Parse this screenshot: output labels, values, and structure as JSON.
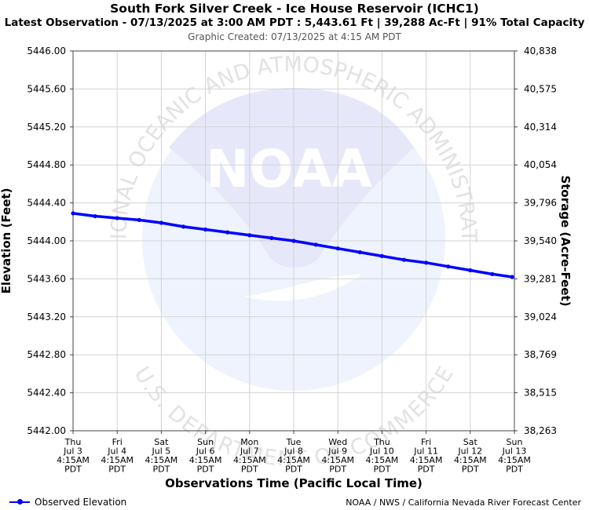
{
  "chart_data": {
    "type": "line",
    "title": "South Fork Silver Creek - Ice House Reservoir (ICHC1)",
    "subtitle": "Latest Observation - 07/13/2025 at 3:00 AM PDT : 5,443.61 Ft | 39,288 Ac-Ft | 91% Total Capacity",
    "created": "Graphic Created: 07/13/2025 at 4:15 AM PDT",
    "xlabel": "Observations Time (Pacific Local Time)",
    "ylabel": "Elevation (Feet)",
    "y2label": "Storage (Acre-Feet)",
    "ylim": [
      5442.0,
      5446.0
    ],
    "xlim": [
      0,
      10
    ],
    "left_ticks": [
      "5442.00",
      "5442.40",
      "5442.80",
      "5443.20",
      "5443.60",
      "5444.00",
      "5444.40",
      "5444.80",
      "5445.20",
      "5445.60",
      "5446.00"
    ],
    "right_ticks": [
      "38,263",
      "38,515",
      "38,769",
      "39,024",
      "39,281",
      "39,540",
      "39,796",
      "40,054",
      "40,314",
      "40,575",
      "40,838"
    ],
    "x_ticks": [
      [
        "Thu",
        "Jul 3",
        "4:15AM",
        "PDT"
      ],
      [
        "Fri",
        "Jul 4",
        "4:15AM",
        "PDT"
      ],
      [
        "Sat",
        "Jul 5",
        "4:15AM",
        "PDT"
      ],
      [
        "Sun",
        "Jul 6",
        "4:15AM",
        "PDT"
      ],
      [
        "Mon",
        "Jul 7",
        "4:15AM",
        "PDT"
      ],
      [
        "Tue",
        "Jul 8",
        "4:15AM",
        "PDT"
      ],
      [
        "Wed",
        "Jul 9",
        "4:15AM",
        "PDT"
      ],
      [
        "Thu",
        "Jul 10",
        "4:15AM",
        "PDT"
      ],
      [
        "Fri",
        "Jul 11",
        "4:15AM",
        "PDT"
      ],
      [
        "Sat",
        "Jul 12",
        "4:15AM",
        "PDT"
      ],
      [
        "Sun",
        "Jul 13",
        "4:15AM",
        "PDT"
      ]
    ],
    "series": [
      {
        "name": "Observed Elevation",
        "color": "#0000ff",
        "x": [
          0,
          0.5,
          1,
          1.5,
          2,
          2.5,
          3,
          3.5,
          4,
          4.5,
          5,
          5.5,
          6,
          6.5,
          7,
          7.5,
          8,
          8.5,
          9,
          9.5,
          9.95
        ],
        "values": [
          5444.29,
          5444.26,
          5444.24,
          5444.22,
          5444.19,
          5444.15,
          5444.12,
          5444.09,
          5444.06,
          5444.03,
          5444.0,
          5443.96,
          5443.92,
          5443.88,
          5443.84,
          5443.8,
          5443.77,
          5443.73,
          5443.69,
          5443.65,
          5443.62
        ]
      }
    ],
    "grid": true,
    "legend": "bottom-left"
  },
  "watermark": {
    "logo_text": "NOAA",
    "ring_top": "NATIONAL OCEANIC AND ATMOSPHERIC ADMINISTRATION",
    "ring_bottom": "U.S. DEPARTMENT OF COMMERCE"
  },
  "legend_label": "Observed Elevation",
  "credit": "NOAA / NWS / California Nevada River Forecast Center",
  "colors": {
    "series": "#0000ff",
    "grid": "#d3d3d3",
    "watermark": "#e8eafa"
  }
}
